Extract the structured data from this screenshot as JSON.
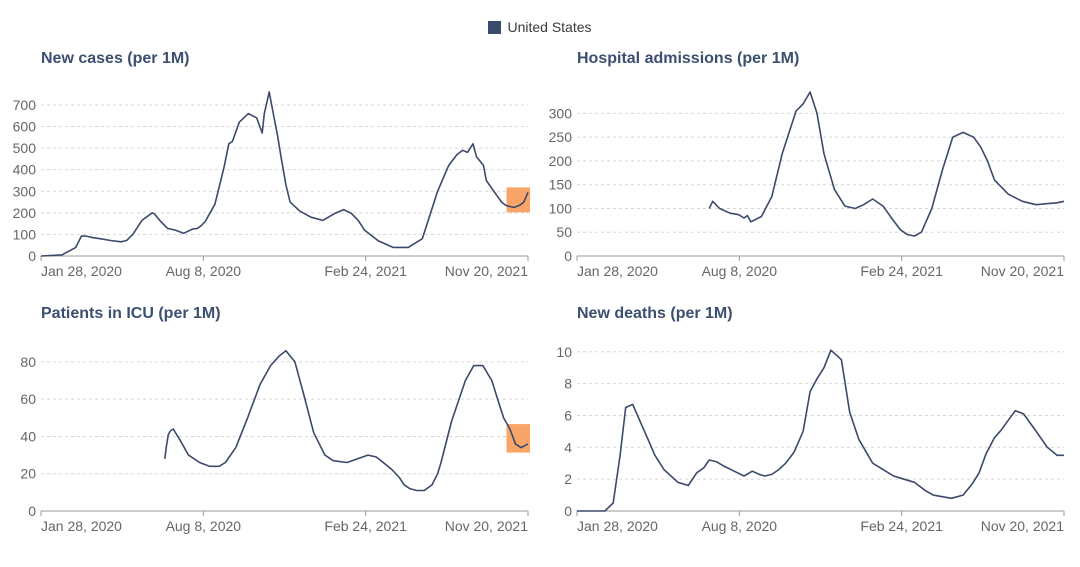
{
  "legend": {
    "label": "United States",
    "color": "#3b4a6b"
  },
  "highlight_color": "#f79b57",
  "line_color": "#3b4a6b",
  "chart_data": [
    {
      "id": "new-cases",
      "type": "line",
      "title": "New cases (per 1M)",
      "x_ticks": [
        "Jan 28, 2020",
        "Aug 8, 2020",
        "Feb 24, 2021",
        "Nov 20, 2021"
      ],
      "x_range": [
        0,
        700
      ],
      "ylim": [
        0,
        760
      ],
      "y_ticks": [
        0,
        100,
        200,
        300,
        400,
        500,
        600,
        700
      ],
      "highlight": {
        "from": 672,
        "to": 700
      },
      "series": [
        {
          "name": "United States",
          "x": [
            0,
            30,
            50,
            58,
            65,
            75,
            85,
            100,
            115,
            123,
            132,
            145,
            160,
            163,
            172,
            182,
            193,
            205,
            218,
            225,
            230,
            236,
            250,
            263,
            270,
            275,
            285,
            298,
            310,
            318,
            321,
            328,
            335,
            340,
            345,
            352,
            358,
            372,
            388,
            405,
            421,
            435,
            446,
            456,
            465,
            485,
            506,
            528,
            548,
            570,
            586,
            598,
            606,
            613,
            621,
            626,
            631,
            636,
            640,
            651,
            662,
            668,
            673,
            680,
            688,
            694,
            700
          ],
          "y": [
            0,
            5,
            40,
            92,
            92,
            85,
            80,
            72,
            66,
            72,
            100,
            165,
            200,
            195,
            160,
            128,
            120,
            105,
            125,
            128,
            140,
            160,
            240,
            410,
            520,
            530,
            620,
            660,
            640,
            570,
            660,
            760,
            640,
            560,
            460,
            330,
            250,
            208,
            180,
            165,
            195,
            215,
            198,
            165,
            120,
            70,
            40,
            40,
            80,
            300,
            420,
            470,
            490,
            480,
            520,
            460,
            440,
            420,
            350,
            300,
            250,
            235,
            230,
            225,
            235,
            250,
            295
          ]
        }
      ]
    },
    {
      "id": "hospital-admissions",
      "type": "line",
      "title": "Hospital admissions (per 1M)",
      "x_ticks": [
        "Jan 28, 2020",
        "Aug 8, 2020",
        "Feb 24, 2021",
        "Nov 20, 2021"
      ],
      "x_range": [
        0,
        700
      ],
      "ylim": [
        0,
        345
      ],
      "y_ticks": [
        0,
        50,
        100,
        150,
        200,
        250,
        300
      ],
      "series": [
        {
          "name": "United States",
          "x": [
            190,
            195,
            205,
            220,
            232,
            240,
            245,
            250,
            265,
            280,
            295,
            306,
            315,
            325,
            335,
            345,
            355,
            370,
            385,
            400,
            412,
            425,
            440,
            452,
            465,
            475,
            485,
            495,
            510,
            525,
            540,
            555,
            570,
            580,
            590,
            600,
            620,
            640,
            660,
            675,
            690,
            700
          ],
          "y": [
            100,
            115,
            100,
            90,
            87,
            80,
            85,
            72,
            83,
            125,
            215,
            265,
            305,
            320,
            345,
            300,
            215,
            140,
            105,
            100,
            108,
            120,
            105,
            80,
            55,
            45,
            42,
            50,
            100,
            180,
            250,
            260,
            250,
            230,
            200,
            160,
            130,
            115,
            108,
            110,
            112,
            115
          ]
        }
      ]
    },
    {
      "id": "patients-icu",
      "type": "line",
      "title": "Patients in ICU (per 1M)",
      "x_ticks": [
        "Jan 28, 2020",
        "Aug 8, 2020",
        "Feb 24, 2021",
        "Nov 20, 2021"
      ],
      "x_range": [
        0,
        700
      ],
      "ylim": [
        0,
        88
      ],
      "y_ticks": [
        0,
        20,
        40,
        60,
        80
      ],
      "highlight": {
        "from": 672,
        "to": 700
      },
      "series": [
        {
          "name": "United States",
          "x": [
            178,
            180,
            183,
            186,
            190,
            200,
            212,
            228,
            242,
            256,
            265,
            280,
            297,
            315,
            330,
            342,
            352,
            365,
            378,
            392,
            408,
            420,
            440,
            455,
            470,
            482,
            492,
            505,
            515,
            522,
            530,
            540,
            551,
            562,
            570,
            575,
            590,
            610,
            622,
            635,
            648,
            658,
            665,
            668,
            674,
            682,
            690,
            695,
            700
          ],
          "y": [
            28,
            34,
            41,
            43,
            44,
            38,
            30,
            26,
            24,
            24,
            26,
            34,
            50,
            68,
            78,
            83,
            86,
            80,
            62,
            42,
            30,
            27,
            26,
            28,
            30,
            29,
            26,
            22,
            18,
            14,
            12,
            11,
            11,
            14,
            20,
            26,
            48,
            70,
            78,
            78,
            70,
            58,
            50,
            48,
            44,
            36,
            34,
            35,
            36
          ]
        }
      ]
    },
    {
      "id": "new-deaths",
      "type": "line",
      "title": "New deaths (per 1M)",
      "x_ticks": [
        "Jan 28, 2020",
        "Aug 8, 2020",
        "Feb 24, 2021",
        "Nov 20, 2021"
      ],
      "x_range": [
        0,
        700
      ],
      "ylim": [
        0,
        10.3
      ],
      "y_ticks": [
        0,
        2,
        4,
        6,
        8,
        10
      ],
      "series": [
        {
          "name": "United States",
          "x": [
            0,
            40,
            52,
            62,
            70,
            80,
            92,
            102,
            112,
            125,
            145,
            160,
            172,
            182,
            190,
            200,
            212,
            226,
            240,
            252,
            262,
            270,
            280,
            290,
            300,
            312,
            325,
            335,
            345,
            355,
            365,
            380,
            392,
            405,
            425,
            440,
            455,
            470,
            485,
            500,
            512,
            525,
            538,
            555,
            568,
            578,
            588,
            600,
            610,
            620,
            630,
            642,
            660,
            676,
            690,
            700
          ],
          "y": [
            0,
            0,
            0.5,
            3.5,
            6.5,
            6.7,
            5.5,
            4.5,
            3.5,
            2.6,
            1.8,
            1.6,
            2.4,
            2.7,
            3.2,
            3.1,
            2.8,
            2.5,
            2.2,
            2.5,
            2.3,
            2.2,
            2.3,
            2.6,
            3.0,
            3.7,
            5.0,
            7.5,
            8.3,
            9.0,
            10.1,
            9.5,
            6.2,
            4.5,
            3.0,
            2.6,
            2.2,
            2.0,
            1.8,
            1.3,
            1.0,
            0.9,
            0.8,
            1.0,
            1.7,
            2.4,
            3.6,
            4.6,
            5.1,
            5.7,
            6.3,
            6.1,
            5.0,
            4.0,
            3.5,
            3.5
          ]
        }
      ]
    }
  ]
}
